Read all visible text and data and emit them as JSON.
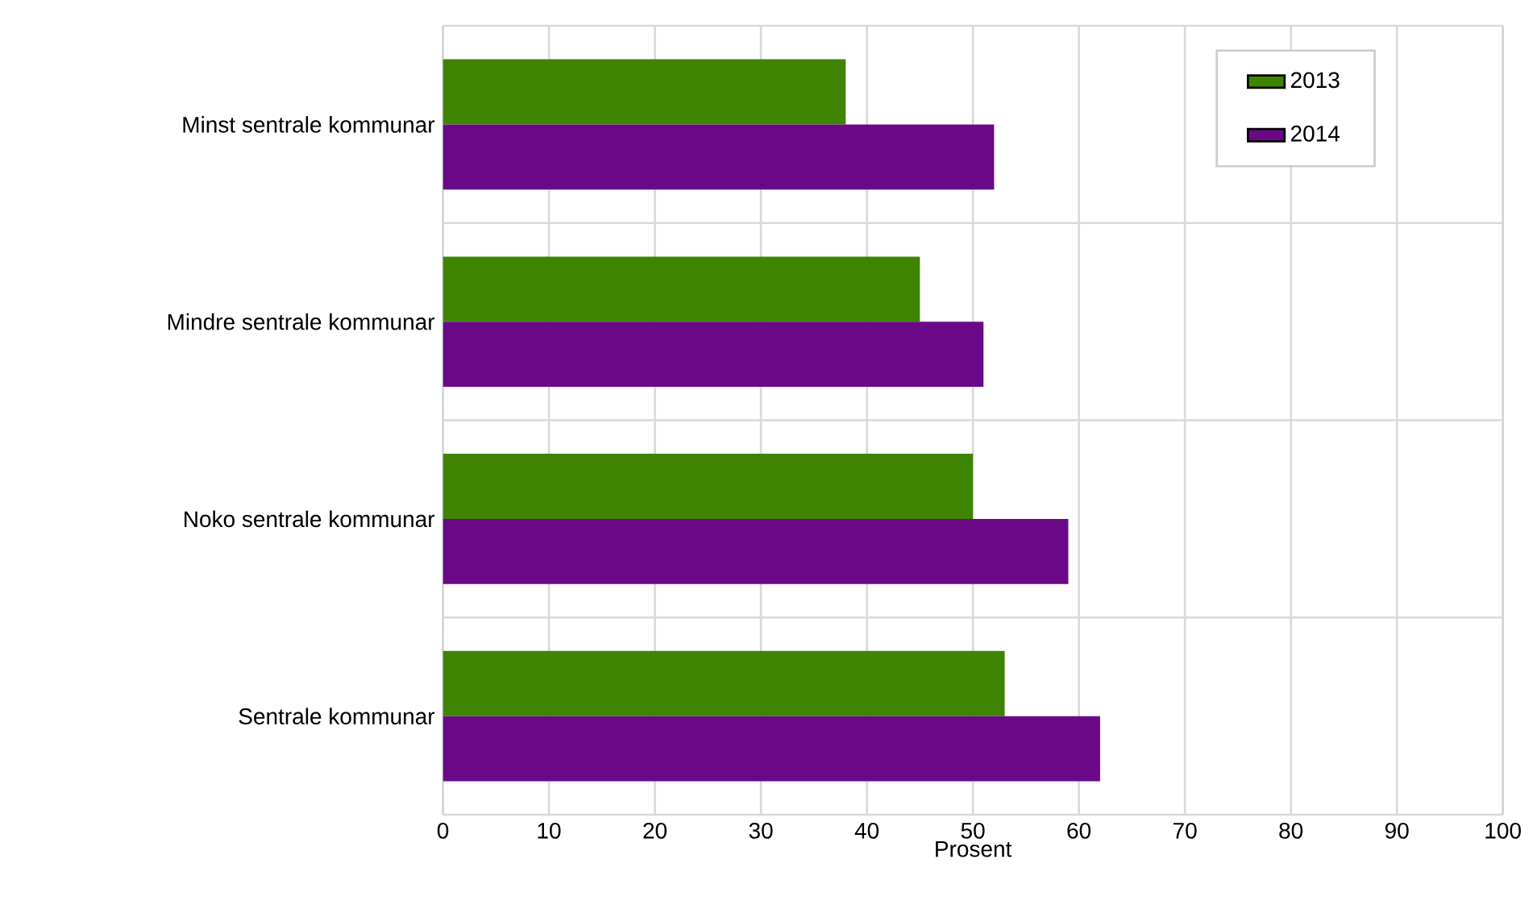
{
  "chart_data": {
    "type": "bar",
    "orientation": "horizontal",
    "xlabel": "Prosent",
    "categories": [
      "Minst sentrale kommunar",
      "Mindre sentrale kommunar",
      "Noko sentrale kommunar",
      "Sentrale kommunar"
    ],
    "series": [
      {
        "name": "2013",
        "color": "#3f8400",
        "values": [
          38,
          45,
          50,
          53
        ]
      },
      {
        "name": "2014",
        "color": "#6a0888",
        "values": [
          52,
          51,
          59,
          62
        ]
      }
    ],
    "xlim": [
      0,
      100
    ],
    "xticks": [
      0,
      10,
      20,
      30,
      40,
      50,
      60,
      70,
      80,
      90,
      100
    ],
    "grid": true,
    "legend": "top right"
  }
}
